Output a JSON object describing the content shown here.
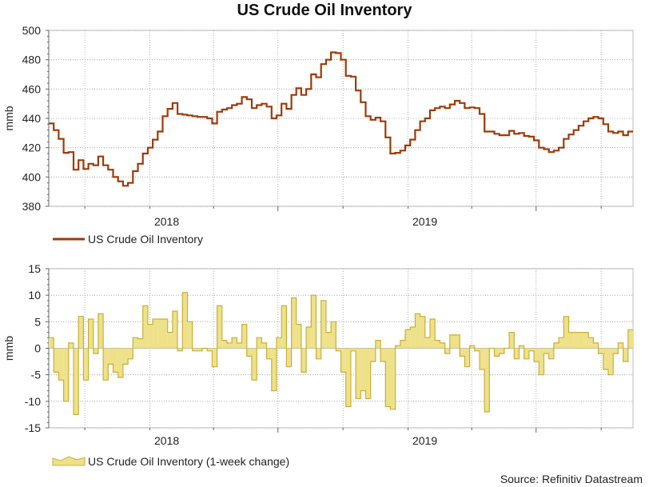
{
  "title": "US Crude Oil Inventory",
  "source": "Source: Refinitiv Datastream",
  "colors": {
    "inventory_line": "#9c3b0a",
    "change_fill": "#eee18a",
    "change_edge": "#c9b03a",
    "grid": "#9a9a9a",
    "axis": "#666666"
  },
  "chart_data": [
    {
      "type": "line",
      "title": "US Crude Oil Inventory",
      "xlabel": "",
      "ylabel": "mmb",
      "ylim": [
        380,
        500
      ],
      "yticks": [
        380,
        400,
        420,
        440,
        460,
        480,
        500
      ],
      "xlim": [
        "2017-08-11",
        "2019-11-15"
      ],
      "xticks": [
        {
          "label": "2018",
          "x": "2018-01-01"
        },
        {
          "label": "2019",
          "x": "2019-01-01"
        }
      ],
      "grid": true,
      "legend": "bottom-left",
      "series": [
        {
          "name": "US Crude Oil Inventory",
          "dates": [
            "2017-08-11",
            "2017-08-18",
            "2017-08-25",
            "2017-09-01",
            "2017-09-08",
            "2017-09-15",
            "2017-09-22",
            "2017-09-29",
            "2017-10-06",
            "2017-10-13",
            "2017-10-20",
            "2017-10-27",
            "2017-11-03",
            "2017-11-10",
            "2017-11-17",
            "2017-11-24",
            "2017-12-01",
            "2017-12-08",
            "2017-12-15",
            "2017-12-22",
            "2017-12-29",
            "2018-01-05",
            "2018-01-12",
            "2018-01-19",
            "2018-01-26",
            "2018-02-02",
            "2018-02-09",
            "2018-02-16",
            "2018-02-23",
            "2018-03-02",
            "2018-03-09",
            "2018-03-16",
            "2018-03-23",
            "2018-03-30",
            "2018-04-06",
            "2018-04-13",
            "2018-04-20",
            "2018-04-27",
            "2018-05-04",
            "2018-05-11",
            "2018-05-18",
            "2018-05-25",
            "2018-06-01",
            "2018-06-08",
            "2018-06-15",
            "2018-06-22",
            "2018-06-29",
            "2018-07-06",
            "2018-07-13",
            "2018-07-20",
            "2018-07-27",
            "2018-08-03",
            "2018-08-10",
            "2018-08-17",
            "2018-08-24",
            "2018-08-31",
            "2018-09-07",
            "2018-09-14",
            "2018-09-21",
            "2018-09-28",
            "2018-10-05",
            "2018-10-12",
            "2018-10-19",
            "2018-10-26",
            "2018-11-02",
            "2018-11-09",
            "2018-11-16",
            "2018-11-23",
            "2018-11-30",
            "2018-12-07",
            "2018-12-14",
            "2018-12-21",
            "2018-12-28",
            "2019-01-04",
            "2019-01-11",
            "2019-01-18",
            "2019-01-25",
            "2019-02-01",
            "2019-02-08",
            "2019-02-15",
            "2019-02-22",
            "2019-03-01",
            "2019-03-08",
            "2019-03-15",
            "2019-03-22",
            "2019-03-29",
            "2019-04-05",
            "2019-04-12",
            "2019-04-19",
            "2019-04-26",
            "2019-05-03",
            "2019-05-10",
            "2019-05-17",
            "2019-05-24",
            "2019-05-31",
            "2019-06-07",
            "2019-06-14",
            "2019-06-21",
            "2019-06-28",
            "2019-07-05",
            "2019-07-12",
            "2019-07-19",
            "2019-07-26",
            "2019-08-02",
            "2019-08-09",
            "2019-08-16",
            "2019-08-23",
            "2019-08-30",
            "2019-09-06",
            "2019-09-13",
            "2019-09-20",
            "2019-09-27",
            "2019-10-04",
            "2019-10-11",
            "2019-10-18",
            "2019-10-25",
            "2019-11-01",
            "2019-11-08"
          ],
          "values": [
            436.5,
            432.0,
            426.0,
            416.5,
            417.0,
            405.0,
            411.5,
            405.5,
            409.0,
            408.0,
            414.0,
            408.0,
            405.0,
            400.0,
            397.0,
            394.0,
            396.0,
            404.0,
            409.0,
            416.0,
            420.0,
            425.5,
            431.0,
            441.5,
            446.5,
            450.5,
            443.0,
            442.5,
            442.0,
            441.5,
            441.0,
            441.0,
            440.0,
            436.5,
            444.5,
            446.0,
            447.0,
            449.0,
            450.0,
            454.5,
            453.0,
            447.0,
            449.0,
            450.0,
            448.0,
            440.0,
            442.0,
            450.0,
            446.5,
            456.0,
            460.5,
            456.0,
            460.0,
            470.0,
            468.0,
            477.0,
            480.0,
            485.0,
            484.5,
            480.0,
            469.0,
            468.5,
            459.0,
            451.0,
            441.5,
            439.0,
            440.5,
            438.0,
            427.0,
            416.0,
            416.5,
            418.0,
            421.5,
            425.5,
            432.0,
            438.0,
            440.0,
            445.5,
            447.0,
            448.0,
            447.0,
            449.5,
            452.0,
            450.5,
            447.0,
            447.5,
            447.0,
            443.0,
            431.0,
            431.0,
            429.5,
            428.5,
            428.5,
            431.5,
            429.5,
            430.0,
            428.0,
            427.5,
            425.0,
            420.0,
            419.0,
            417.0,
            418.0,
            420.0,
            426.0,
            429.0,
            432.0,
            435.0,
            438.0,
            440.0,
            441.0,
            440.0,
            436.0,
            431.0,
            430.0,
            431.0,
            428.5,
            431.0
          ],
          "color": "#9c3b0a"
        }
      ]
    },
    {
      "type": "area",
      "title": "",
      "xlabel": "",
      "ylabel": "mmb",
      "ylim": [
        -15,
        15
      ],
      "yticks": [
        -15,
        -10,
        -5,
        0,
        5,
        10,
        15
      ],
      "xlim": [
        "2017-08-11",
        "2019-11-15"
      ],
      "xticks": [
        {
          "label": "2018",
          "x": "2018-01-01"
        },
        {
          "label": "2019",
          "x": "2019-01-01"
        }
      ],
      "grid": true,
      "legend": "bottom-left",
      "series": [
        {
          "name": "US Crude Oil Inventory (1-week change)",
          "dates": [
            "2017-08-11",
            "2017-08-18",
            "2017-08-25",
            "2017-09-01",
            "2017-09-08",
            "2017-09-15",
            "2017-09-22",
            "2017-09-29",
            "2017-10-06",
            "2017-10-13",
            "2017-10-20",
            "2017-10-27",
            "2017-11-03",
            "2017-11-10",
            "2017-11-17",
            "2017-11-24",
            "2017-12-01",
            "2017-12-08",
            "2017-12-15",
            "2017-12-22",
            "2017-12-29",
            "2018-01-05",
            "2018-01-12",
            "2018-01-19",
            "2018-01-26",
            "2018-02-02",
            "2018-02-09",
            "2018-02-16",
            "2018-02-23",
            "2018-03-02",
            "2018-03-09",
            "2018-03-16",
            "2018-03-23",
            "2018-03-30",
            "2018-04-06",
            "2018-04-13",
            "2018-04-20",
            "2018-04-27",
            "2018-05-04",
            "2018-05-11",
            "2018-05-18",
            "2018-05-25",
            "2018-06-01",
            "2018-06-08",
            "2018-06-15",
            "2018-06-22",
            "2018-06-29",
            "2018-07-06",
            "2018-07-13",
            "2018-07-20",
            "2018-07-27",
            "2018-08-03",
            "2018-08-10",
            "2018-08-17",
            "2018-08-24",
            "2018-08-31",
            "2018-09-07",
            "2018-09-14",
            "2018-09-21",
            "2018-09-28",
            "2018-10-05",
            "2018-10-12",
            "2018-10-19",
            "2018-10-26",
            "2018-11-02",
            "2018-11-09",
            "2018-11-16",
            "2018-11-23",
            "2018-11-30",
            "2018-12-07",
            "2018-12-14",
            "2018-12-21",
            "2018-12-28",
            "2019-01-04",
            "2019-01-11",
            "2019-01-18",
            "2019-01-25",
            "2019-02-01",
            "2019-02-08",
            "2019-02-15",
            "2019-02-22",
            "2019-03-01",
            "2019-03-08",
            "2019-03-15",
            "2019-03-22",
            "2019-03-29",
            "2019-04-05",
            "2019-04-12",
            "2019-04-19",
            "2019-04-26",
            "2019-05-03",
            "2019-05-10",
            "2019-05-17",
            "2019-05-24",
            "2019-05-31",
            "2019-06-07",
            "2019-06-14",
            "2019-06-21",
            "2019-06-28",
            "2019-07-05",
            "2019-07-12",
            "2019-07-19",
            "2019-07-26",
            "2019-08-02",
            "2019-08-09",
            "2019-08-16",
            "2019-08-23",
            "2019-08-30",
            "2019-09-06",
            "2019-09-13",
            "2019-09-20",
            "2019-09-27",
            "2019-10-04",
            "2019-10-11",
            "2019-10-18",
            "2019-10-25",
            "2019-11-01",
            "2019-11-08"
          ],
          "values": [
            2.0,
            -4.5,
            -6.0,
            -10.0,
            1.0,
            -12.5,
            6.0,
            -6.0,
            5.5,
            -1.0,
            6.5,
            -6.0,
            -3.0,
            -4.5,
            -5.5,
            -3.0,
            -2.0,
            2.0,
            1.8,
            8.0,
            4.5,
            5.5,
            5.5,
            5.5,
            3.0,
            7.0,
            -0.5,
            10.5,
            5.0,
            -0.5,
            -0.5,
            0.0,
            -0.5,
            -3.5,
            8.0,
            1.5,
            1.0,
            2.0,
            1.0,
            4.5,
            -1.5,
            -6.0,
            2.0,
            1.0,
            -2.0,
            -8.0,
            2.0,
            8.0,
            -3.5,
            9.5,
            4.5,
            -4.5,
            4.0,
            10.0,
            -2.0,
            9.0,
            3.0,
            5.0,
            -0.5,
            -4.5,
            -11.0,
            -0.5,
            -9.5,
            -8.0,
            -9.5,
            -2.5,
            1.5,
            -2.5,
            -11.0,
            -11.5,
            0.5,
            1.5,
            3.5,
            4.0,
            6.5,
            6.0,
            2.0,
            5.5,
            1.5,
            1.0,
            -1.0,
            2.5,
            2.5,
            -1.5,
            -3.5,
            0.5,
            -0.5,
            -4.0,
            -12.0,
            0.0,
            -1.5,
            -1.0,
            0.0,
            3.0,
            -2.0,
            0.5,
            -2.0,
            -0.5,
            -2.5,
            -5.0,
            -1.0,
            -2.0,
            1.0,
            2.0,
            6.0,
            3.0,
            3.0,
            3.0,
            3.0,
            2.0,
            1.0,
            -1.0,
            -4.0,
            -5.0,
            -1.0,
            1.0,
            -2.5,
            3.5
          ],
          "color": "#eee18a"
        }
      ]
    }
  ]
}
